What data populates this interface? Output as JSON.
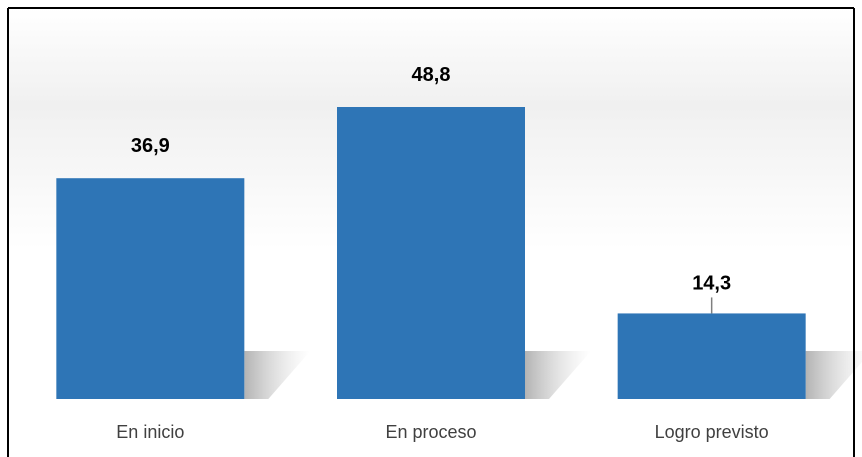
{
  "chart_data": {
    "type": "bar",
    "categories": [
      "En inicio",
      "En proceso",
      "Logro previsto"
    ],
    "values": [
      36.9,
      48.8,
      14.3
    ],
    "value_labels": [
      "36,9",
      "48,8",
      "14,3"
    ],
    "title": "",
    "xlabel": "",
    "ylabel": "",
    "ylim": [
      0,
      55
    ],
    "grid": false,
    "legend": "none",
    "colors": {
      "bar": "#2E75B6",
      "label": "#000000",
      "tick_label": "#404040",
      "border": "#000000",
      "leader_line": "#7F7F7F"
    }
  }
}
